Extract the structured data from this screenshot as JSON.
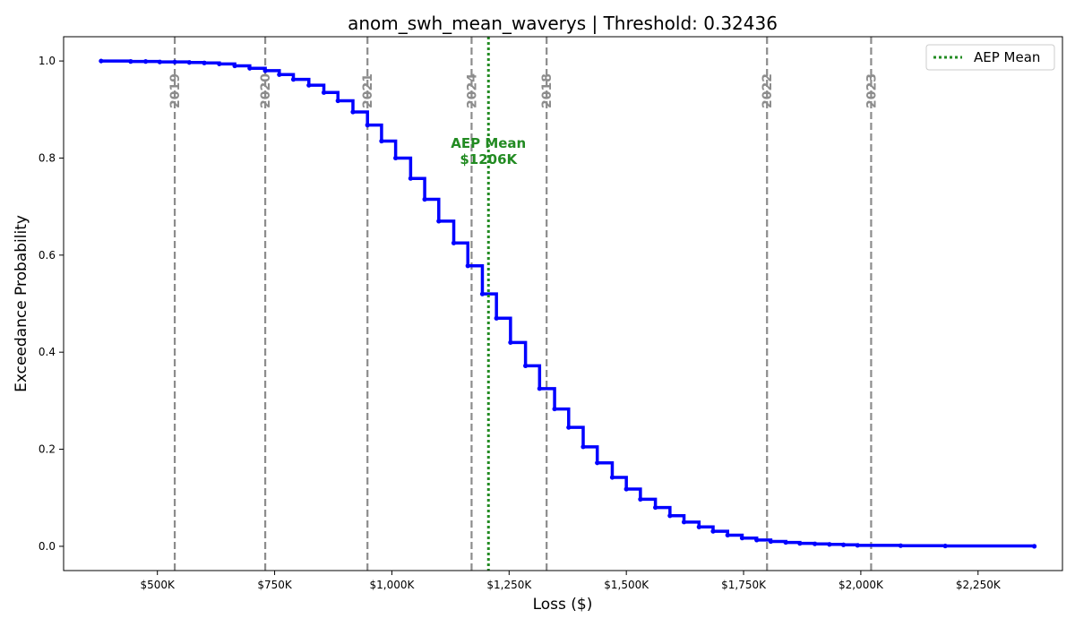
{
  "chart_data": {
    "type": "line",
    "title": "anom_swh_mean_waverys | Threshold: 0.32436",
    "xlabel": "Loss ($)",
    "ylabel": "Exceedance Probability",
    "xlim": [
      300000,
      2430000
    ],
    "ylim": [
      -0.05,
      1.05
    ],
    "x_ticks": [
      500000,
      750000,
      1000000,
      1250000,
      1500000,
      1750000,
      2000000,
      2250000
    ],
    "x_tick_labels": [
      "$500K",
      "$750K",
      "$1,000K",
      "$1,250K",
      "$1,500K",
      "$1,750K",
      "$2,000K",
      "$2,250K"
    ],
    "y_ticks": [
      0.0,
      0.2,
      0.4,
      0.6,
      0.8,
      1.0
    ],
    "y_tick_labels": [
      "0.0",
      "0.2",
      "0.4",
      "0.6",
      "0.8",
      "1.0"
    ],
    "grid": false,
    "series": [
      {
        "name": "",
        "color": "#0000ff",
        "step": true,
        "points": [
          [
            380000,
            1.0
          ],
          [
            443000,
            0.999
          ],
          [
            475000,
            0.999
          ],
          [
            505000,
            0.998
          ],
          [
            537000,
            0.998
          ],
          [
            568000,
            0.997
          ],
          [
            600000,
            0.996
          ],
          [
            632000,
            0.994
          ],
          [
            665000,
            0.99
          ],
          [
            697000,
            0.985
          ],
          [
            730000,
            0.98
          ],
          [
            760000,
            0.972
          ],
          [
            790000,
            0.962
          ],
          [
            823000,
            0.95
          ],
          [
            855000,
            0.935
          ],
          [
            885000,
            0.918
          ],
          [
            917000,
            0.895
          ],
          [
            948000,
            0.868
          ],
          [
            978000,
            0.835
          ],
          [
            1008000,
            0.8
          ],
          [
            1040000,
            0.758
          ],
          [
            1070000,
            0.715
          ],
          [
            1100000,
            0.67
          ],
          [
            1132000,
            0.625
          ],
          [
            1162000,
            0.578
          ],
          [
            1193000,
            0.52
          ],
          [
            1223000,
            0.47
          ],
          [
            1253000,
            0.42
          ],
          [
            1285000,
            0.372
          ],
          [
            1315000,
            0.325
          ],
          [
            1347000,
            0.283
          ],
          [
            1377000,
            0.245
          ],
          [
            1408000,
            0.205
          ],
          [
            1438000,
            0.172
          ],
          [
            1470000,
            0.142
          ],
          [
            1500000,
            0.118
          ],
          [
            1530000,
            0.097
          ],
          [
            1562000,
            0.08
          ],
          [
            1593000,
            0.063
          ],
          [
            1623000,
            0.05
          ],
          [
            1655000,
            0.04
          ],
          [
            1685000,
            0.031
          ],
          [
            1716000,
            0.023
          ],
          [
            1747000,
            0.017
          ],
          [
            1778000,
            0.013
          ],
          [
            1808000,
            0.01
          ],
          [
            1840000,
            0.008
          ],
          [
            1870000,
            0.006
          ],
          [
            1902000,
            0.005
          ],
          [
            1933000,
            0.004
          ],
          [
            1963000,
            0.003
          ],
          [
            1993000,
            0.002
          ],
          [
            2085000,
            0.0013
          ],
          [
            2180000,
            0.0007
          ],
          [
            2370000,
            0.0
          ]
        ]
      }
    ],
    "vertical_lines": [
      {
        "x": 537000,
        "label": "2019",
        "color": "#8c8c8c",
        "style": "dashed"
      },
      {
        "x": 730000,
        "label": "2020",
        "color": "#8c8c8c",
        "style": "dashed"
      },
      {
        "x": 948000,
        "label": "2021",
        "color": "#8c8c8c",
        "style": "dashed"
      },
      {
        "x": 1170000,
        "label": "2024",
        "color": "#8c8c8c",
        "style": "dashed"
      },
      {
        "x": 1330000,
        "label": "2018",
        "color": "#8c8c8c",
        "style": "dashed"
      },
      {
        "x": 1800000,
        "label": "2022",
        "color": "#8c8c8c",
        "style": "dashed"
      },
      {
        "x": 2022000,
        "label": "2023",
        "color": "#8c8c8c",
        "style": "dashed"
      }
    ],
    "mean_line": {
      "x": 1206000,
      "color": "#228b22",
      "style": "dotted",
      "annotation_line1": "AEP Mean",
      "annotation_line2": "$1206K"
    },
    "legend": {
      "placement": "top-right",
      "entries": [
        {
          "label": "AEP Mean",
          "color": "#228b22",
          "style": "dotted"
        }
      ]
    }
  }
}
